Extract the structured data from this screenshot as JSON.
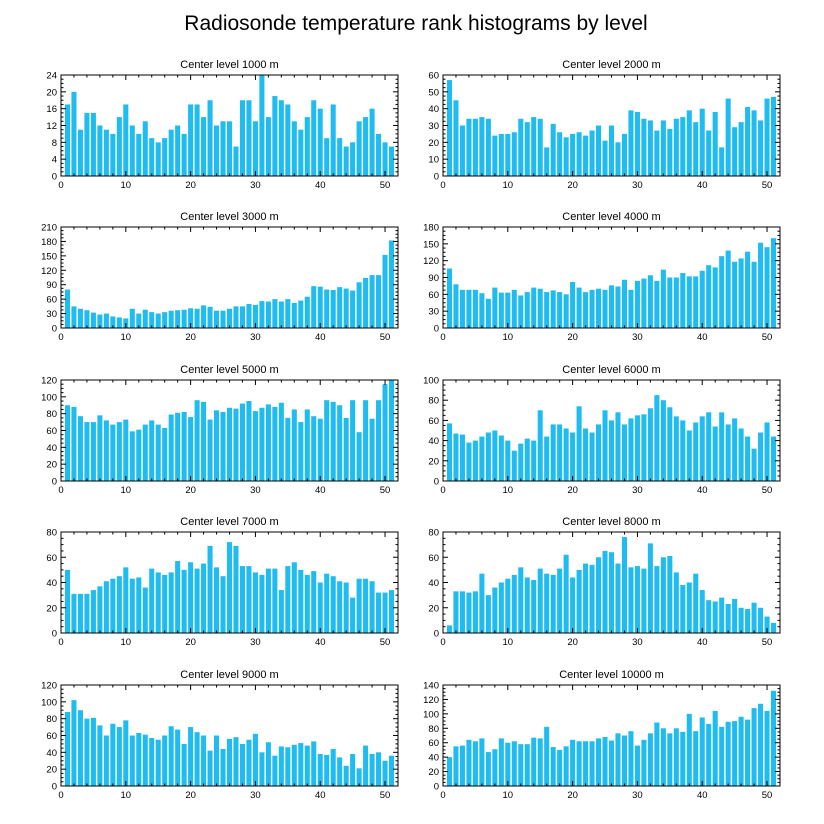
{
  "colors": {
    "bar": "#1ebcf0",
    "axis": "#000000"
  },
  "figure_title": "Radiosonde temperature rank histograms by level",
  "chart_data": [
    {
      "type": "bar",
      "title": "Center level 1000 m",
      "xlim": [
        0,
        52
      ],
      "ylim": [
        0,
        24
      ],
      "xticks": [
        0,
        10,
        20,
        30,
        40,
        50
      ],
      "yticks": [
        0,
        4,
        8,
        12,
        16,
        20,
        24
      ],
      "x": [
        1,
        2,
        3,
        4,
        5,
        6,
        7,
        8,
        9,
        10,
        11,
        12,
        13,
        14,
        15,
        16,
        17,
        18,
        19,
        20,
        21,
        22,
        23,
        24,
        25,
        26,
        27,
        28,
        29,
        30,
        31,
        32,
        33,
        34,
        35,
        36,
        37,
        38,
        39,
        40,
        41,
        42,
        43,
        44,
        45,
        46,
        47,
        48,
        49,
        50,
        51
      ],
      "values": [
        17,
        20,
        11,
        15,
        15,
        12,
        11,
        10,
        14,
        17,
        12,
        10,
        13,
        9,
        8,
        9,
        11,
        12,
        10,
        17,
        17,
        14,
        18,
        12,
        13,
        13,
        7,
        18,
        18,
        13,
        24,
        14,
        19,
        18,
        17,
        13,
        11,
        14,
        18,
        16,
        9,
        17,
        9,
        7,
        8,
        13,
        14,
        16,
        10,
        8,
        7
      ]
    },
    {
      "type": "bar",
      "title": "Center level 2000 m",
      "xlim": [
        0,
        52
      ],
      "ylim": [
        0,
        60
      ],
      "xticks": [
        0,
        10,
        20,
        30,
        40,
        50
      ],
      "yticks": [
        0,
        10,
        20,
        30,
        40,
        50,
        60
      ],
      "x": [
        1,
        2,
        3,
        4,
        5,
        6,
        7,
        8,
        9,
        10,
        11,
        12,
        13,
        14,
        15,
        16,
        17,
        18,
        19,
        20,
        21,
        22,
        23,
        24,
        25,
        26,
        27,
        28,
        29,
        30,
        31,
        32,
        33,
        34,
        35,
        36,
        37,
        38,
        39,
        40,
        41,
        42,
        43,
        44,
        45,
        46,
        47,
        48,
        49,
        50,
        51
      ],
      "values": [
        57,
        45,
        30,
        34,
        34,
        35,
        34,
        24,
        25,
        25,
        26,
        34,
        32,
        35,
        34,
        17,
        31,
        26,
        23,
        25,
        26,
        24,
        27,
        30,
        21,
        30,
        20,
        25,
        39,
        38,
        34,
        33,
        27,
        33,
        28,
        34,
        35,
        39,
        32,
        40,
        27,
        38,
        17,
        46,
        29,
        32,
        41,
        39,
        33,
        46,
        47
      ]
    },
    {
      "type": "bar",
      "title": "Center level 3000 m",
      "xlim": [
        0,
        52
      ],
      "ylim": [
        0,
        210
      ],
      "xticks": [
        0,
        10,
        20,
        30,
        40,
        50
      ],
      "yticks": [
        0,
        30,
        60,
        90,
        120,
        150,
        180,
        210
      ],
      "x": [
        1,
        2,
        3,
        4,
        5,
        6,
        7,
        8,
        9,
        10,
        11,
        12,
        13,
        14,
        15,
        16,
        17,
        18,
        19,
        20,
        21,
        22,
        23,
        24,
        25,
        26,
        27,
        28,
        29,
        30,
        31,
        32,
        33,
        34,
        35,
        36,
        37,
        38,
        39,
        40,
        41,
        42,
        43,
        44,
        45,
        46,
        47,
        48,
        49,
        50,
        51
      ],
      "values": [
        80,
        45,
        40,
        37,
        32,
        28,
        30,
        24,
        22,
        20,
        40,
        30,
        38,
        33,
        30,
        33,
        36,
        37,
        38,
        41,
        40,
        47,
        44,
        36,
        36,
        40,
        45,
        45,
        50,
        48,
        56,
        55,
        60,
        55,
        60,
        52,
        57,
        65,
        87,
        86,
        80,
        79,
        85,
        82,
        78,
        95,
        104,
        110,
        110,
        152,
        182
      ]
    },
    {
      "type": "bar",
      "title": "Center level 4000 m",
      "xlim": [
        0,
        52
      ],
      "ylim": [
        0,
        180
      ],
      "xticks": [
        0,
        10,
        20,
        30,
        40,
        50
      ],
      "yticks": [
        0,
        30,
        60,
        90,
        120,
        150,
        180
      ],
      "x": [
        1,
        2,
        3,
        4,
        5,
        6,
        7,
        8,
        9,
        10,
        11,
        12,
        13,
        14,
        15,
        16,
        17,
        18,
        19,
        20,
        21,
        22,
        23,
        24,
        25,
        26,
        27,
        28,
        29,
        30,
        31,
        32,
        33,
        34,
        35,
        36,
        37,
        38,
        39,
        40,
        41,
        42,
        43,
        44,
        45,
        46,
        47,
        48,
        49,
        50,
        51
      ],
      "values": [
        106,
        78,
        68,
        68,
        68,
        62,
        52,
        72,
        63,
        63,
        68,
        58,
        64,
        72,
        70,
        64,
        67,
        64,
        60,
        82,
        72,
        64,
        68,
        70,
        68,
        76,
        74,
        86,
        68,
        84,
        88,
        94,
        84,
        104,
        90,
        90,
        98,
        92,
        92,
        102,
        112,
        108,
        128,
        138,
        118,
        124,
        136,
        118,
        152,
        144,
        160
      ]
    },
    {
      "type": "bar",
      "title": "Center level 5000 m",
      "xlim": [
        0,
        52
      ],
      "ylim": [
        0,
        120
      ],
      "xticks": [
        0,
        10,
        20,
        30,
        40,
        50
      ],
      "yticks": [
        0,
        20,
        40,
        60,
        80,
        100,
        120
      ],
      "x": [
        1,
        2,
        3,
        4,
        5,
        6,
        7,
        8,
        9,
        10,
        11,
        12,
        13,
        14,
        15,
        16,
        17,
        18,
        19,
        20,
        21,
        22,
        23,
        24,
        25,
        26,
        27,
        28,
        29,
        30,
        31,
        32,
        33,
        34,
        35,
        36,
        37,
        38,
        39,
        40,
        41,
        42,
        43,
        44,
        45,
        46,
        47,
        48,
        49,
        50,
        51
      ],
      "values": [
        90,
        88,
        77,
        70,
        70,
        78,
        72,
        67,
        70,
        73,
        59,
        61,
        67,
        72,
        67,
        63,
        79,
        81,
        82,
        76,
        96,
        94,
        73,
        84,
        82,
        87,
        86,
        92,
        95,
        83,
        87,
        91,
        88,
        93,
        75,
        85,
        70,
        85,
        77,
        74,
        96,
        94,
        90,
        75,
        96,
        58,
        96,
        74,
        96,
        115,
        120
      ]
    },
    {
      "type": "bar",
      "title": "Center level 6000 m",
      "xlim": [
        0,
        52
      ],
      "ylim": [
        0,
        100
      ],
      "xticks": [
        0,
        10,
        20,
        30,
        40,
        50
      ],
      "yticks": [
        0,
        20,
        40,
        60,
        80,
        100
      ],
      "x": [
        1,
        2,
        3,
        4,
        5,
        6,
        7,
        8,
        9,
        10,
        11,
        12,
        13,
        14,
        15,
        16,
        17,
        18,
        19,
        20,
        21,
        22,
        23,
        24,
        25,
        26,
        27,
        28,
        29,
        30,
        31,
        32,
        33,
        34,
        35,
        36,
        37,
        38,
        39,
        40,
        41,
        42,
        43,
        44,
        45,
        46,
        47,
        48,
        49,
        50,
        51
      ],
      "values": [
        57,
        47,
        46,
        38,
        40,
        44,
        48,
        50,
        45,
        40,
        30,
        37,
        42,
        40,
        70,
        44,
        56,
        56,
        52,
        48,
        74,
        52,
        48,
        56,
        70,
        60,
        68,
        56,
        62,
        65,
        66,
        72,
        85,
        80,
        73,
        64,
        60,
        50,
        58,
        64,
        68,
        54,
        68,
        56,
        62,
        52,
        44,
        32,
        48,
        58,
        44
      ]
    },
    {
      "type": "bar",
      "title": "Center level 7000 m",
      "xlim": [
        0,
        52
      ],
      "ylim": [
        0,
        80
      ],
      "xticks": [
        0,
        10,
        20,
        30,
        40,
        50
      ],
      "yticks": [
        0,
        20,
        40,
        60,
        80
      ],
      "x": [
        1,
        2,
        3,
        4,
        5,
        6,
        7,
        8,
        9,
        10,
        11,
        12,
        13,
        14,
        15,
        16,
        17,
        18,
        19,
        20,
        21,
        22,
        23,
        24,
        25,
        26,
        27,
        28,
        29,
        30,
        31,
        32,
        33,
        34,
        35,
        36,
        37,
        38,
        39,
        40,
        41,
        42,
        43,
        44,
        45,
        46,
        47,
        48,
        49,
        50,
        51
      ],
      "values": [
        50,
        31,
        31,
        31,
        34,
        37,
        41,
        43,
        45,
        52,
        43,
        44,
        36,
        51,
        48,
        46,
        48,
        57,
        50,
        56,
        51,
        55,
        69,
        52,
        45,
        72,
        69,
        53,
        53,
        48,
        46,
        51,
        51,
        34,
        53,
        56,
        50,
        46,
        49,
        40,
        47,
        45,
        41,
        40,
        28,
        43,
        43,
        41,
        32,
        32,
        34
      ]
    },
    {
      "type": "bar",
      "title": "Center level 8000 m",
      "xlim": [
        0,
        52
      ],
      "ylim": [
        0,
        80
      ],
      "xticks": [
        0,
        10,
        20,
        30,
        40,
        50
      ],
      "yticks": [
        0,
        20,
        40,
        60,
        80
      ],
      "x": [
        1,
        2,
        3,
        4,
        5,
        6,
        7,
        8,
        9,
        10,
        11,
        12,
        13,
        14,
        15,
        16,
        17,
        18,
        19,
        20,
        21,
        22,
        23,
        24,
        25,
        26,
        27,
        28,
        29,
        30,
        31,
        32,
        33,
        34,
        35,
        36,
        37,
        38,
        39,
        40,
        41,
        42,
        43,
        44,
        45,
        46,
        47,
        48,
        49,
        50,
        51
      ],
      "values": [
        6,
        33,
        33,
        32,
        33,
        47,
        30,
        36,
        40,
        43,
        46,
        52,
        44,
        42,
        51,
        47,
        46,
        51,
        62,
        44,
        50,
        55,
        54,
        60,
        65,
        64,
        55,
        76,
        52,
        53,
        51,
        71,
        53,
        60,
        61,
        48,
        38,
        40,
        47,
        34,
        26,
        25,
        28,
        23,
        27,
        20,
        19,
        24,
        20,
        13,
        8
      ]
    },
    {
      "type": "bar",
      "title": "Center level 9000 m",
      "xlim": [
        0,
        52
      ],
      "ylim": [
        0,
        120
      ],
      "xticks": [
        0,
        10,
        20,
        30,
        40,
        50
      ],
      "yticks": [
        0,
        20,
        40,
        60,
        80,
        100,
        120
      ],
      "x": [
        1,
        2,
        3,
        4,
        5,
        6,
        7,
        8,
        9,
        10,
        11,
        12,
        13,
        14,
        15,
        16,
        17,
        18,
        19,
        20,
        21,
        22,
        23,
        24,
        25,
        26,
        27,
        28,
        29,
        30,
        31,
        32,
        33,
        34,
        35,
        36,
        37,
        38,
        39,
        40,
        41,
        42,
        43,
        44,
        45,
        46,
        47,
        48,
        49,
        50,
        51
      ],
      "values": [
        88,
        102,
        90,
        80,
        81,
        72,
        60,
        74,
        70,
        78,
        60,
        63,
        61,
        57,
        55,
        60,
        71,
        67,
        50,
        70,
        64,
        60,
        42,
        60,
        44,
        56,
        58,
        50,
        55,
        62,
        40,
        52,
        36,
        47,
        46,
        49,
        51,
        48,
        53,
        38,
        37,
        44,
        34,
        24,
        38,
        21,
        48,
        38,
        40,
        30,
        36
      ]
    },
    {
      "type": "bar",
      "title": "Center level 10000 m",
      "xlim": [
        0,
        52
      ],
      "ylim": [
        0,
        140
      ],
      "xticks": [
        0,
        10,
        20,
        30,
        40,
        50
      ],
      "yticks": [
        0,
        20,
        40,
        60,
        80,
        100,
        120,
        140
      ],
      "x": [
        1,
        2,
        3,
        4,
        5,
        6,
        7,
        8,
        9,
        10,
        11,
        12,
        13,
        14,
        15,
        16,
        17,
        18,
        19,
        20,
        21,
        22,
        23,
        24,
        25,
        26,
        27,
        28,
        29,
        30,
        31,
        32,
        33,
        34,
        35,
        36,
        37,
        38,
        39,
        40,
        41,
        42,
        43,
        44,
        45,
        46,
        47,
        48,
        49,
        50,
        51
      ],
      "values": [
        40,
        55,
        56,
        64,
        62,
        66,
        47,
        51,
        66,
        60,
        62,
        58,
        58,
        67,
        66,
        82,
        54,
        50,
        55,
        64,
        62,
        62,
        62,
        66,
        68,
        63,
        73,
        70,
        76,
        56,
        64,
        73,
        88,
        80,
        73,
        80,
        75,
        100,
        76,
        95,
        86,
        104,
        82,
        89,
        90,
        96,
        92,
        108,
        114,
        104,
        132
      ]
    }
  ]
}
